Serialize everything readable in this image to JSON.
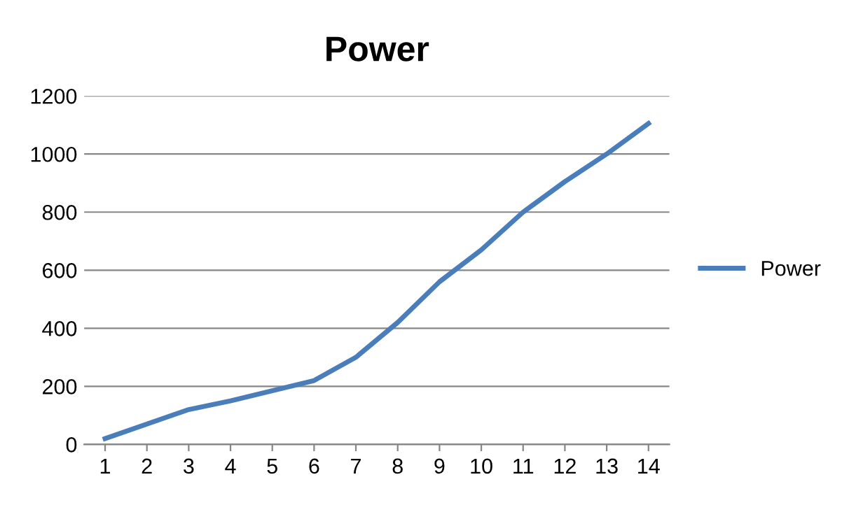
{
  "chart_data": {
    "type": "line",
    "title": "Power",
    "categories": [
      "1",
      "2",
      "3",
      "4",
      "5",
      "6",
      "7",
      "8",
      "9",
      "10",
      "11",
      "12",
      "13",
      "14"
    ],
    "series": [
      {
        "name": "Power",
        "color": "#4a7ebb",
        "values": [
          20,
          70,
          120,
          150,
          185,
          220,
          300,
          420,
          560,
          670,
          800,
          905,
          1000,
          1105
        ]
      }
    ],
    "ylim": [
      0,
      1200
    ],
    "yticks": [
      0,
      200,
      400,
      600,
      800,
      1000,
      1200
    ],
    "grid": "y",
    "legend": "right",
    "marker": "none",
    "line_style": "solid"
  }
}
